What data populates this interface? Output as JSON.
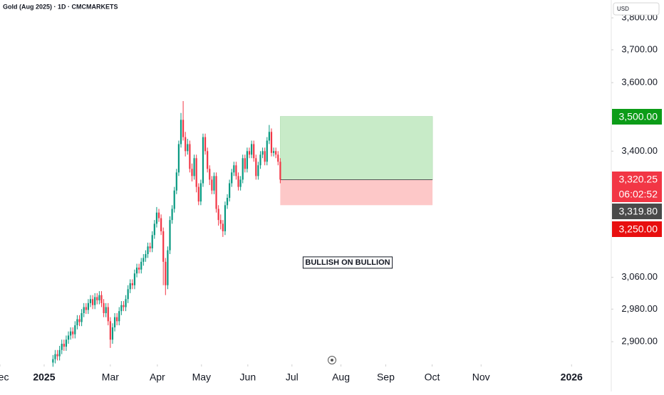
{
  "chart_data": {
    "type": "candlestick",
    "title": "Gold (Aug 2025) · 1D · CMCMARKETS",
    "currency": "USD",
    "log_scale": true,
    "up_color": "#089981",
    "down_color": "#f23645",
    "xlim": [
      0,
      277
    ],
    "ylim": [
      2849,
      3857
    ],
    "xticks": [
      {
        "value": 0,
        "label": "Dec"
      },
      {
        "value": 20,
        "label": "2025"
      },
      {
        "value": 50,
        "label": "Mar"
      },
      {
        "value": 71.3,
        "label": "Apr"
      },
      {
        "value": 91.3,
        "label": "May"
      },
      {
        "value": 112.3,
        "label": "Jun"
      },
      {
        "value": 132.3,
        "label": "Jul"
      },
      {
        "value": 154.5,
        "label": "Aug"
      },
      {
        "value": 174.8,
        "label": "Sep"
      },
      {
        "value": 195.8,
        "label": "Oct"
      },
      {
        "value": 218,
        "label": "Nov"
      },
      {
        "value": 259,
        "label": "2026"
      }
    ],
    "yticks": [
      {
        "value": 2900,
        "label": "2,900.00"
      },
      {
        "value": 2980,
        "label": "2,980.00"
      },
      {
        "value": 3060,
        "label": "3,060.00"
      },
      {
        "value": 3400,
        "label": "3,400.00"
      },
      {
        "value": 3600,
        "label": "3,600.00"
      },
      {
        "value": 3700,
        "label": "3,700.00"
      },
      {
        "value": 3800,
        "label": "3,800.00"
      }
    ],
    "x": [
      24,
      25,
      26,
      27,
      28,
      29,
      30,
      31,
      32,
      33,
      34,
      35,
      36,
      37,
      38,
      39,
      40,
      41,
      42,
      43,
      44,
      45,
      46,
      47,
      48,
      49,
      50,
      51,
      52,
      53,
      54,
      55,
      56,
      57,
      58,
      59,
      60,
      61,
      62,
      63,
      64,
      65,
      66,
      67,
      68,
      69,
      70,
      71,
      72,
      73,
      74,
      75,
      76,
      77,
      78,
      79,
      80,
      81,
      82,
      83,
      84,
      85,
      86,
      87,
      88,
      89,
      90,
      91,
      92,
      93,
      94,
      95,
      96,
      97,
      98,
      99,
      100,
      101,
      102,
      103,
      104,
      105,
      106,
      107,
      108,
      109,
      110,
      111,
      112,
      113,
      114,
      115,
      116,
      117,
      118,
      119,
      120,
      121,
      122,
      123,
      124,
      125,
      126,
      127
    ],
    "open": [
      2850,
      2858,
      2870,
      2865,
      2880,
      2895,
      2888,
      2905,
      2915,
      2925,
      2918,
      2940,
      2955,
      2948,
      2970,
      2985,
      2978,
      2995,
      3005,
      2990,
      3010,
      3002,
      3015,
      2995,
      2970,
      2985,
      2950,
      2905,
      2935,
      2960,
      2950,
      2975,
      2990,
      2985,
      3005,
      3030,
      3045,
      3040,
      3070,
      3085,
      3080,
      3100,
      3110,
      3120,
      3140,
      3135,
      3170,
      3200,
      3230,
      3215,
      3180,
      3100,
      3040,
      3130,
      3210,
      3240,
      3290,
      3340,
      3420,
      3490,
      3440,
      3400,
      3420,
      3350,
      3330,
      3380,
      3300,
      3260,
      3310,
      3440,
      3400,
      3350,
      3320,
      3290,
      3330,
      3240,
      3210,
      3200,
      3180,
      3250,
      3270,
      3310,
      3340,
      3360,
      3330,
      3300,
      3320,
      3380,
      3350,
      3400,
      3390,
      3420,
      3380,
      3330,
      3360,
      3390,
      3400,
      3370,
      3430,
      3455,
      3395,
      3400,
      3390,
      3370
    ],
    "high": [
      2868,
      2880,
      2880,
      2890,
      2905,
      2905,
      2915,
      2925,
      2935,
      2935,
      2950,
      2965,
      2965,
      2980,
      2995,
      2995,
      3005,
      3015,
      3015,
      3020,
      3020,
      3025,
      3025,
      3005,
      2995,
      2995,
      2960,
      2945,
      2970,
      2970,
      2985,
      3000,
      3000,
      3015,
      3040,
      3055,
      3055,
      3080,
      3095,
      3095,
      3110,
      3120,
      3130,
      3150,
      3150,
      3180,
      3210,
      3245,
      3240,
      3225,
      3190,
      3110,
      3140,
      3220,
      3250,
      3300,
      3350,
      3430,
      3510,
      3545,
      3455,
      3435,
      3430,
      3365,
      3390,
      3390,
      3310,
      3320,
      3450,
      3450,
      3410,
      3360,
      3330,
      3340,
      3340,
      3250,
      3225,
      3210,
      3260,
      3280,
      3320,
      3350,
      3370,
      3370,
      3340,
      3330,
      3390,
      3390,
      3410,
      3410,
      3430,
      3430,
      3390,
      3370,
      3400,
      3410,
      3410,
      3440,
      3475,
      3465,
      3410,
      3410,
      3400,
      3380
    ],
    "low": [
      2840,
      2848,
      2855,
      2855,
      2870,
      2878,
      2878,
      2895,
      2905,
      2908,
      2908,
      2930,
      2938,
      2938,
      2960,
      2968,
      2968,
      2985,
      2980,
      2980,
      2992,
      2992,
      2985,
      2960,
      2960,
      2940,
      2885,
      2895,
      2925,
      2940,
      2940,
      2965,
      2975,
      2975,
      2995,
      3020,
      3030,
      3030,
      3060,
      3070,
      3070,
      3090,
      3100,
      3110,
      3125,
      3125,
      3160,
      3190,
      3205,
      3170,
      3040,
      3015,
      3030,
      3120,
      3200,
      3230,
      3280,
      3330,
      3410,
      3430,
      3385,
      3390,
      3340,
      3315,
      3320,
      3285,
      3250,
      3250,
      3300,
      3390,
      3340,
      3305,
      3280,
      3280,
      3230,
      3195,
      3185,
      3165,
      3170,
      3240,
      3260,
      3300,
      3330,
      3320,
      3290,
      3290,
      3310,
      3340,
      3340,
      3380,
      3380,
      3370,
      3320,
      3320,
      3350,
      3380,
      3360,
      3360,
      3420,
      3385,
      3385,
      3380,
      3360,
      3310
    ],
    "close": [
      2858,
      2870,
      2865,
      2880,
      2895,
      2888,
      2905,
      2915,
      2925,
      2918,
      2940,
      2955,
      2948,
      2970,
      2985,
      2978,
      2995,
      3005,
      2990,
      3010,
      3002,
      3015,
      2995,
      2970,
      2985,
      2950,
      2905,
      2935,
      2960,
      2950,
      2975,
      2990,
      2985,
      3005,
      3030,
      3045,
      3040,
      3070,
      3085,
      3080,
      3100,
      3110,
      3120,
      3140,
      3135,
      3170,
      3200,
      3230,
      3215,
      3180,
      3100,
      3040,
      3130,
      3210,
      3240,
      3290,
      3340,
      3420,
      3490,
      3440,
      3400,
      3420,
      3350,
      3330,
      3380,
      3300,
      3260,
      3310,
      3440,
      3400,
      3350,
      3320,
      3290,
      3330,
      3240,
      3210,
      3200,
      3180,
      3250,
      3270,
      3310,
      3340,
      3360,
      3330,
      3300,
      3320,
      3380,
      3350,
      3400,
      3390,
      3420,
      3380,
      3330,
      3360,
      3390,
      3400,
      3370,
      3430,
      3455,
      3395,
      3400,
      3390,
      3370,
      3320
    ],
    "position": {
      "start_x": 127,
      "end_x": 196,
      "entry": 3319.8,
      "target": 3500,
      "stop": 3250,
      "profit_color": "#c8ebc8",
      "loss_color": "#fdc8c8",
      "label": "BULLISH ON BULLION"
    },
    "price_tags": [
      {
        "value": 3500,
        "label": "3,500.00",
        "color": "#0c9c18"
      },
      {
        "value": 3320.25,
        "label": "3,320.25",
        "color": "#f23645"
      },
      {
        "label": "06:02:52",
        "color": "#f23645"
      },
      {
        "value": 3319.8,
        "label": "3,319.80",
        "color": "#4a4a4a"
      },
      {
        "value": 3250,
        "label": "3,250.00",
        "color": "#e80f0f"
      }
    ]
  }
}
